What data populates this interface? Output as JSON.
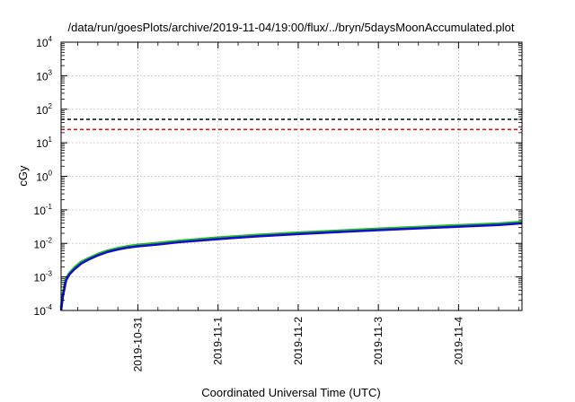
{
  "chart_data": {
    "type": "line",
    "title": "/data/run/goesPlots/archive/2019-11-04/19:00/flux/../bryn/5daysMoonAccumulated.plot",
    "xlabel": "Coordinated Universal Time (UTC)",
    "ylabel": "cGy",
    "yscale": "log",
    "ylim": [
      0.0001,
      10000
    ],
    "xlim": [
      "2019-10-30T01:00",
      "2019-11-04T19:00"
    ],
    "grid": true,
    "x_ticks": [
      "2019-10-31",
      "2019-11-1",
      "2019-11-2",
      "2019-11-3",
      "2019-11-4"
    ],
    "y_ticks": [
      {
        "base": "10",
        "exp": "-4"
      },
      {
        "base": "10",
        "exp": "-3"
      },
      {
        "base": "10",
        "exp": "-2"
      },
      {
        "base": "10",
        "exp": "-1"
      },
      {
        "base": "10",
        "exp": "0"
      },
      {
        "base": "10",
        "exp": "1"
      },
      {
        "base": "10",
        "exp": "2"
      },
      {
        "base": "10",
        "exp": "3"
      },
      {
        "base": "10",
        "exp": "4"
      }
    ],
    "thresholds": [
      {
        "value": 50,
        "color": "#000000",
        "style": "dashed"
      },
      {
        "value": 25,
        "color": "#ff0000",
        "style": "dashed"
      }
    ],
    "series": [
      {
        "color": "#22bb22",
        "x": [
          "2019-10-30T01:00",
          "2019-10-30T01:30",
          "2019-10-30T02:30",
          "2019-10-30T03:30",
          "2019-10-30T05:00",
          "2019-10-30T07:00",
          "2019-10-30T09:00",
          "2019-10-30T12:00",
          "2019-10-30T15:00",
          "2019-10-30T18:00",
          "2019-10-30T21:00",
          "2019-10-31T00:00",
          "2019-10-31T06:00",
          "2019-10-31T12:00",
          "2019-11-01T00:00",
          "2019-11-01T12:00",
          "2019-11-02T00:00",
          "2019-11-02T12:00",
          "2019-11-03T00:00",
          "2019-11-03T12:00",
          "2019-11-04T00:00",
          "2019-11-04T12:00",
          "2019-11-04T19:00"
        ],
        "values": [
          0.00012,
          0.0003,
          0.0009,
          0.0013,
          0.0019,
          0.0028,
          0.0035,
          0.0048,
          0.0061,
          0.0072,
          0.0082,
          0.009,
          0.0102,
          0.0118,
          0.0148,
          0.0178,
          0.0208,
          0.0238,
          0.0272,
          0.0305,
          0.0345,
          0.0388,
          0.0435
        ]
      },
      {
        "color": "#1111cc",
        "x": [
          "2019-10-30T01:00",
          "2019-10-30T01:30",
          "2019-10-30T02:30",
          "2019-10-30T03:30",
          "2019-10-30T05:00",
          "2019-10-30T07:00",
          "2019-10-30T09:00",
          "2019-10-30T12:00",
          "2019-10-30T15:00",
          "2019-10-30T18:00",
          "2019-10-30T21:00",
          "2019-10-31T00:00",
          "2019-10-31T06:00",
          "2019-10-31T12:00",
          "2019-11-01T00:00",
          "2019-11-01T12:00",
          "2019-11-02T00:00",
          "2019-11-02T12:00",
          "2019-11-03T00:00",
          "2019-11-03T12:00",
          "2019-11-04T00:00",
          "2019-11-04T12:00",
          "2019-11-04T19:00"
        ],
        "values": [
          0.0001,
          0.00026,
          0.0008,
          0.0012,
          0.0017,
          0.0025,
          0.0032,
          0.0044,
          0.0056,
          0.0066,
          0.0075,
          0.0082,
          0.0093,
          0.0108,
          0.0135,
          0.0163,
          0.019,
          0.0218,
          0.025,
          0.028,
          0.0315,
          0.0355,
          0.0398
        ]
      }
    ]
  }
}
